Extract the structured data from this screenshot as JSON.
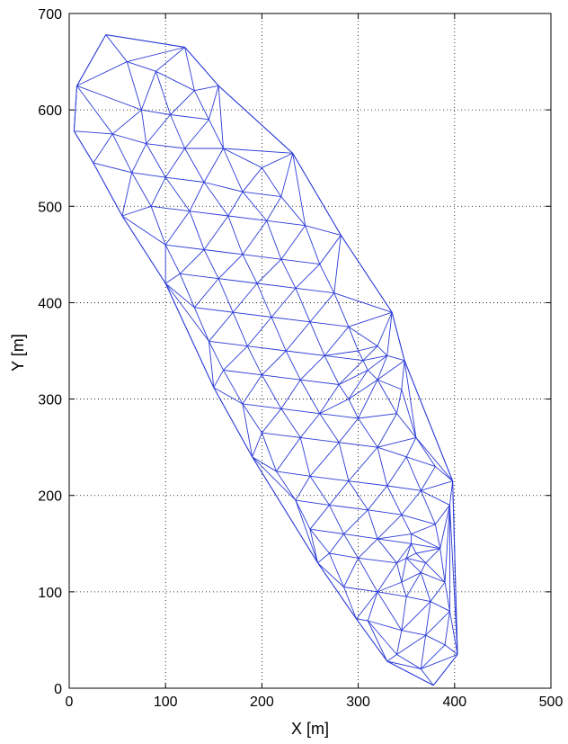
{
  "chart_data": {
    "type": "scatter",
    "subtype": "delaunay-triangulation-mesh",
    "title": "",
    "xlabel": "X [m]",
    "ylabel": "Y [m]",
    "xlim": [
      0,
      500
    ],
    "ylim": [
      0,
      700
    ],
    "xticks": [
      0,
      100,
      200,
      300,
      400,
      500
    ],
    "yticks": [
      0,
      100,
      200,
      300,
      400,
      500,
      600,
      700
    ],
    "grid": true,
    "line_color": "#2b3bd6",
    "boundary": [
      [
        38,
        678
      ],
      [
        120,
        665
      ],
      [
        155,
        625
      ],
      [
        232,
        555
      ],
      [
        282,
        470
      ],
      [
        335,
        390
      ],
      [
        348,
        340
      ],
      [
        398,
        215
      ],
      [
        403,
        35
      ],
      [
        378,
        3
      ],
      [
        330,
        28
      ],
      [
        298,
        72
      ],
      [
        258,
        130
      ],
      [
        190,
        240
      ],
      [
        150,
        312
      ],
      [
        100,
        420
      ],
      [
        55,
        490
      ],
      [
        25,
        545
      ],
      [
        5,
        578
      ],
      [
        8,
        625
      ]
    ],
    "points": [
      [
        38,
        678
      ],
      [
        120,
        665
      ],
      [
        155,
        625
      ],
      [
        232,
        555
      ],
      [
        282,
        470
      ],
      [
        335,
        390
      ],
      [
        348,
        340
      ],
      [
        398,
        215
      ],
      [
        403,
        35
      ],
      [
        378,
        3
      ],
      [
        330,
        28
      ],
      [
        298,
        72
      ],
      [
        258,
        130
      ],
      [
        190,
        240
      ],
      [
        150,
        312
      ],
      [
        100,
        420
      ],
      [
        55,
        490
      ],
      [
        25,
        545
      ],
      [
        5,
        578
      ],
      [
        8,
        625
      ],
      [
        60,
        650
      ],
      [
        90,
        640
      ],
      [
        130,
        620
      ],
      [
        75,
        600
      ],
      [
        105,
        595
      ],
      [
        145,
        590
      ],
      [
        45,
        575
      ],
      [
        80,
        565
      ],
      [
        120,
        560
      ],
      [
        160,
        560
      ],
      [
        200,
        540
      ],
      [
        65,
        535
      ],
      [
        100,
        530
      ],
      [
        140,
        525
      ],
      [
        180,
        515
      ],
      [
        220,
        510
      ],
      [
        85,
        500
      ],
      [
        125,
        495
      ],
      [
        165,
        490
      ],
      [
        205,
        485
      ],
      [
        245,
        480
      ],
      [
        100,
        460
      ],
      [
        140,
        455
      ],
      [
        180,
        450
      ],
      [
        220,
        445
      ],
      [
        260,
        440
      ],
      [
        115,
        430
      ],
      [
        155,
        425
      ],
      [
        195,
        420
      ],
      [
        235,
        415
      ],
      [
        275,
        410
      ],
      [
        130,
        395
      ],
      [
        170,
        390
      ],
      [
        210,
        385
      ],
      [
        250,
        380
      ],
      [
        290,
        375
      ],
      [
        145,
        360
      ],
      [
        185,
        355
      ],
      [
        225,
        350
      ],
      [
        265,
        345
      ],
      [
        300,
        350
      ],
      [
        320,
        355
      ],
      [
        160,
        330
      ],
      [
        200,
        325
      ],
      [
        240,
        320
      ],
      [
        280,
        315
      ],
      [
        320,
        320
      ],
      [
        345,
        310
      ],
      [
        180,
        295
      ],
      [
        220,
        290
      ],
      [
        260,
        285
      ],
      [
        300,
        280
      ],
      [
        340,
        285
      ],
      [
        360,
        260
      ],
      [
        200,
        265
      ],
      [
        240,
        260
      ],
      [
        280,
        255
      ],
      [
        320,
        250
      ],
      [
        350,
        240
      ],
      [
        380,
        230
      ],
      [
        215,
        225
      ],
      [
        250,
        220
      ],
      [
        290,
        215
      ],
      [
        330,
        210
      ],
      [
        365,
        205
      ],
      [
        395,
        190
      ],
      [
        235,
        195
      ],
      [
        270,
        190
      ],
      [
        310,
        185
      ],
      [
        345,
        180
      ],
      [
        380,
        170
      ],
      [
        250,
        165
      ],
      [
        285,
        160
      ],
      [
        320,
        155
      ],
      [
        355,
        150
      ],
      [
        385,
        145
      ],
      [
        270,
        140
      ],
      [
        300,
        135
      ],
      [
        340,
        130
      ],
      [
        365,
        120
      ],
      [
        390,
        110
      ],
      [
        285,
        105
      ],
      [
        320,
        100
      ],
      [
        350,
        95
      ],
      [
        375,
        90
      ],
      [
        395,
        80
      ],
      [
        310,
        70
      ],
      [
        345,
        60
      ],
      [
        370,
        55
      ],
      [
        390,
        45
      ],
      [
        340,
        35
      ],
      [
        365,
        20
      ],
      [
        305,
        340
      ],
      [
        310,
        330
      ],
      [
        330,
        345
      ],
      [
        290,
        300
      ],
      [
        350,
        135
      ],
      [
        360,
        140
      ],
      [
        345,
        110
      ],
      [
        355,
        160
      ],
      [
        370,
        130
      ]
    ]
  }
}
